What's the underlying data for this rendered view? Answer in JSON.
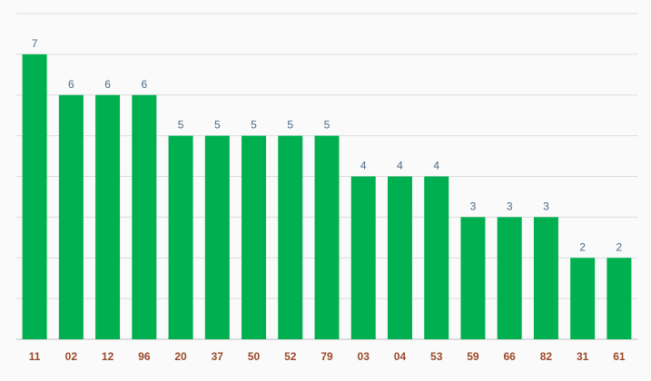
{
  "chart_data": {
    "type": "bar",
    "categories": [
      "11",
      "02",
      "12",
      "96",
      "20",
      "37",
      "50",
      "52",
      "79",
      "03",
      "04",
      "53",
      "59",
      "66",
      "82",
      "31",
      "61"
    ],
    "values": [
      7,
      6,
      6,
      6,
      5,
      5,
      5,
      5,
      5,
      4,
      4,
      4,
      3,
      3,
      3,
      2,
      2
    ],
    "ylim": [
      0,
      8
    ],
    "grid": true,
    "show_data_labels": true,
    "bar_color": "#00b050",
    "value_label_color": "#4a6a86",
    "tick_label_color": "#9a4a2a",
    "grid_color": "#dcdcdc",
    "background": "#fafafa"
  }
}
